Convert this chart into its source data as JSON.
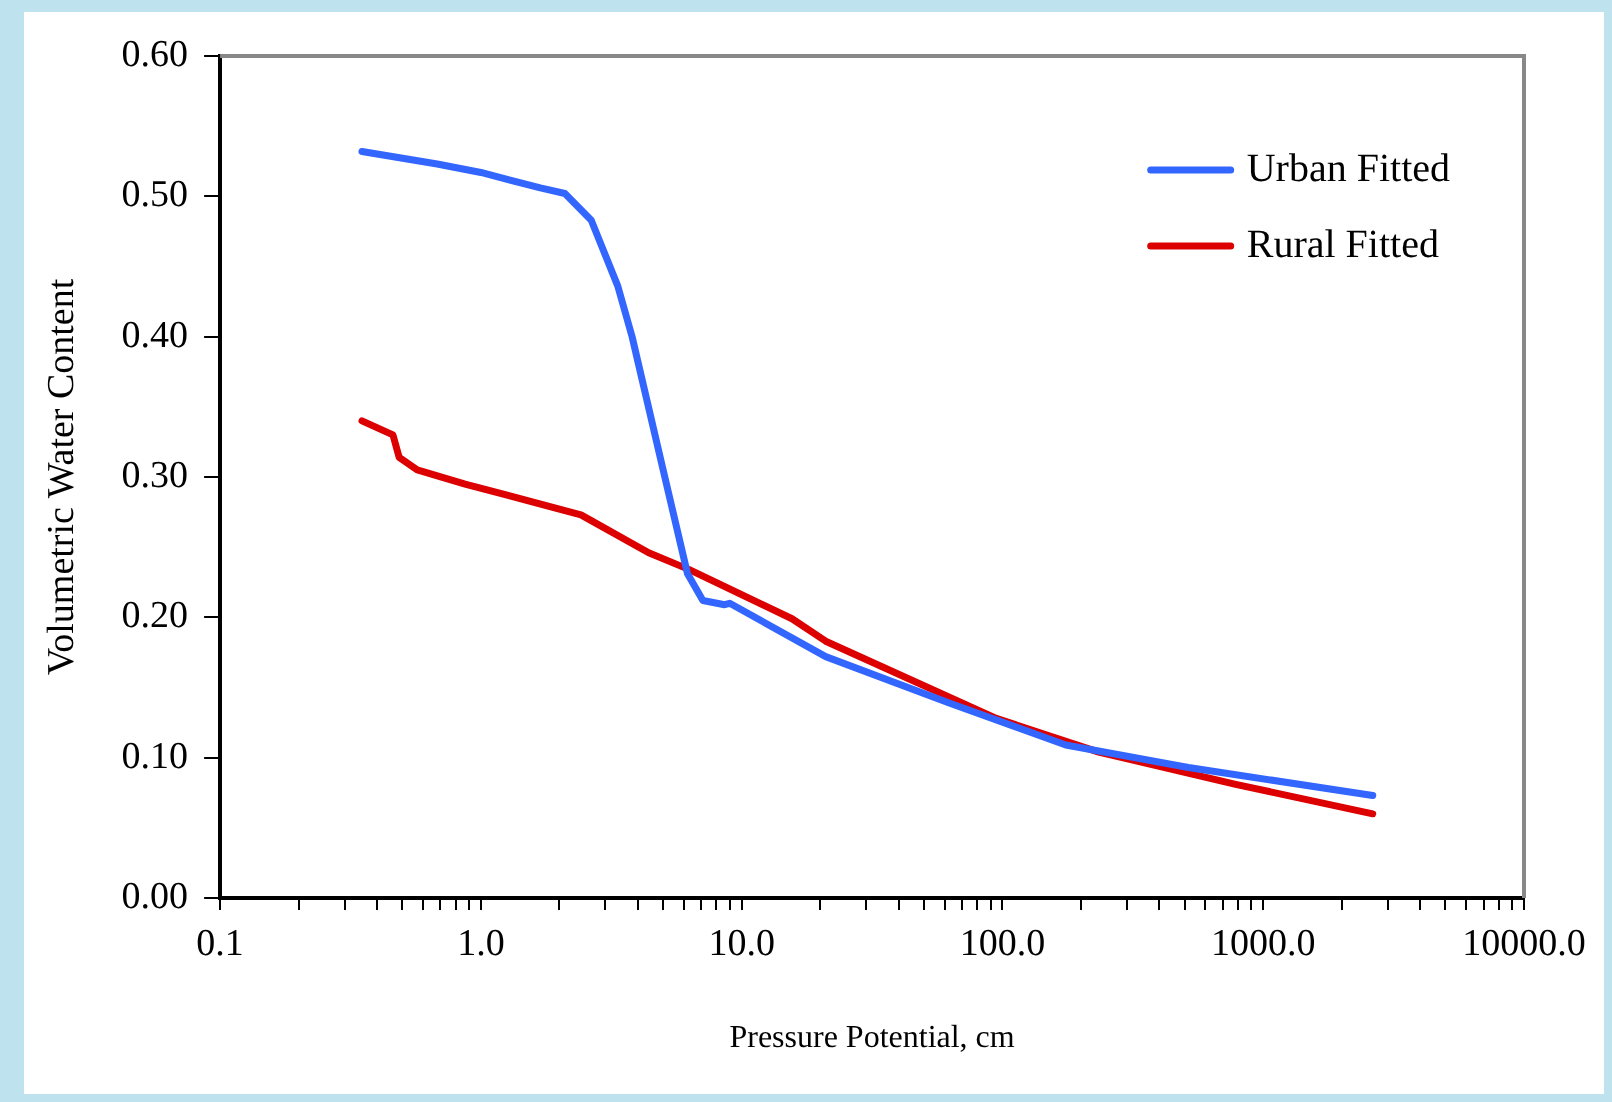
{
  "chart_data": {
    "type": "line",
    "xlabel": "Pressure Potential, cm",
    "ylabel": "Volumetric Water Content",
    "log": "x",
    "xlim": [
      0.1,
      10000
    ],
    "ylim": [
      0,
      0.6
    ],
    "xticks": [
      0.1,
      {
        "value": 0.2,
        "label": null
      },
      {
        "value": 0.3,
        "label": null
      },
      {
        "value": 0.4,
        "label": null
      },
      {
        "value": 0.5,
        "label": null
      },
      {
        "value": 0.6,
        "label": null
      },
      {
        "value": 0.7,
        "label": null
      },
      {
        "value": 0.8,
        "label": null
      },
      {
        "value": 0.9,
        "label": null
      },
      {
        "value": 1,
        "label": "1.0"
      },
      {
        "value": 2,
        "label": null
      },
      {
        "value": 3,
        "label": null
      },
      {
        "value": 4,
        "label": null
      },
      {
        "value": 5,
        "label": null
      },
      {
        "value": 6,
        "label": null
      },
      {
        "value": 7,
        "label": null
      },
      {
        "value": 8,
        "label": null
      },
      {
        "value": 9,
        "label": null
      },
      {
        "value": 10,
        "label": "10.0"
      },
      {
        "value": 20,
        "label": null
      },
      {
        "value": 30,
        "label": null
      },
      {
        "value": 40,
        "label": null
      },
      {
        "value": 50,
        "label": null
      },
      {
        "value": 60,
        "label": null
      },
      {
        "value": 70,
        "label": null
      },
      {
        "value": 80,
        "label": null
      },
      {
        "value": 90,
        "label": null
      },
      {
        "value": 100,
        "label": "100.0"
      },
      {
        "value": 200,
        "label": null
      },
      {
        "value": 300,
        "label": null
      },
      {
        "value": 400,
        "label": null
      },
      {
        "value": 500,
        "label": null
      },
      {
        "value": 600,
        "label": null
      },
      {
        "value": 700,
        "label": null
      },
      {
        "value": 800,
        "label": null
      },
      {
        "value": 900,
        "label": null
      },
      {
        "value": 1000,
        "label": "1000.0"
      },
      {
        "value": 2000,
        "label": null
      },
      {
        "value": 3000,
        "label": null
      },
      {
        "value": 4000,
        "label": null
      },
      {
        "value": 5000,
        "label": null
      },
      {
        "value": 6000,
        "label": null
      },
      {
        "value": 7000,
        "label": null
      },
      {
        "value": 8000,
        "label": null
      },
      {
        "value": 9000,
        "label": null
      },
      {
        "value": 10000,
        "label": "10000.0"
      }
    ],
    "yticks": [
      {
        "value": 0,
        "label": "0.00"
      },
      {
        "value": 0.1,
        "label": "0.10"
      },
      {
        "value": 0.2,
        "label": "0.20"
      },
      {
        "value": 0.3,
        "label": "0.30"
      },
      {
        "value": 0.4,
        "label": "0.40"
      },
      {
        "value": 0.5,
        "label": "0.50"
      },
      {
        "value": 0.6,
        "label": "0.60"
      }
    ],
    "grid": false,
    "legend": "top right",
    "marker": "none",
    "line_style": "solid",
    "series": [
      {
        "name": "Urban Fitted",
        "color": "#3366ff",
        "x": [
          0.35,
          0.68,
          1,
          1.69,
          2.1,
          2.65,
          3.35,
          3.8,
          5,
          6.2,
          7.1,
          8.6,
          9,
          21,
          62.5,
          175,
          517,
          2630
        ],
        "values": [
          0.532,
          0.523,
          0.517,
          0.506,
          0.502,
          0.483,
          0.436,
          0.4,
          0.305,
          0.231,
          0.212,
          0.209,
          0.21,
          0.172,
          0.139,
          0.109,
          0.093,
          0.073
        ]
      },
      {
        "name": "Rural Fitted",
        "color": "#dd0000",
        "x": [
          0.35,
          0.46,
          0.486,
          0.57,
          0.87,
          2.42,
          4.4,
          6.3,
          15.6,
          21,
          94.7,
          234,
          784,
          2630
        ],
        "values": [
          0.34,
          0.33,
          0.314,
          0.305,
          0.295,
          0.273,
          0.246,
          0.234,
          0.199,
          0.183,
          0.128,
          0.104,
          0.081,
          0.06
        ]
      }
    ]
  }
}
